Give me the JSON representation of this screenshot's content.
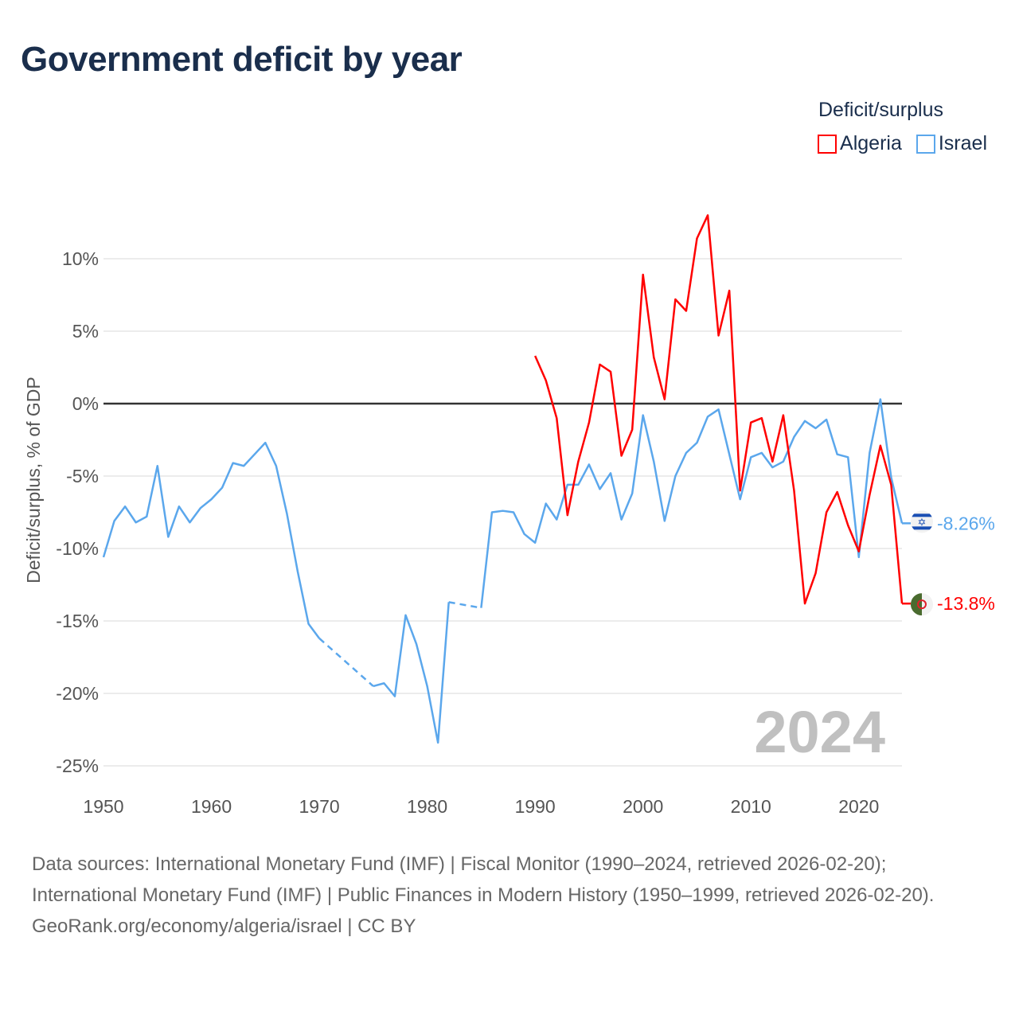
{
  "title": "Government deficit by year",
  "legend": {
    "title": "Deficit/surplus",
    "items": [
      {
        "name": "Algeria",
        "color": "#ff0000"
      },
      {
        "name": "Israel",
        "color": "#5ba7ec"
      }
    ]
  },
  "year_watermark": "2024",
  "footer": {
    "line1": "Data sources: International Monetary Fund (IMF) | Fiscal Monitor (1990–2024, retrieved 2026-02-20); International Monetary Fund (IMF) | Public Finances in Modern History (1950–1999, retrieved 2026-02-20).",
    "line2": "GeoRank.org/economy/algeria/israel | CC BY"
  },
  "chart_data": {
    "type": "line",
    "title": "Government deficit by year",
    "xlabel": "",
    "ylabel": "Deficit/surplus, % of GDP",
    "xlim": [
      1950,
      2024
    ],
    "ylim": [
      -25,
      14
    ],
    "x_ticks": [
      1950,
      1960,
      1970,
      1980,
      1990,
      2000,
      2010,
      2020
    ],
    "y_ticks": [
      10,
      5,
      0,
      -5,
      -10,
      -15,
      -20,
      -25
    ],
    "y_tick_labels": [
      "10%",
      "5%",
      "0%",
      "-5%",
      "-10%",
      "-15%",
      "-20%",
      "-25%"
    ],
    "grid": true,
    "legend_position": "top-right",
    "series": [
      {
        "name": "Israel",
        "color": "#5ba7ec",
        "end_label": "-8.26%",
        "start_year": 1950,
        "values": [
          -10.6,
          -8.1,
          -7.1,
          -8.2,
          -7.8,
          -4.3,
          -9.2,
          -7.1,
          -8.2,
          -7.2,
          -6.6,
          -5.8,
          -4.1,
          -4.3,
          -3.5,
          -2.7,
          -4.3,
          -7.6,
          -11.6,
          -15.2,
          -16.2,
          null,
          null,
          null,
          null,
          -19.5,
          -19.3,
          -20.2,
          -14.6,
          -16.6,
          -19.5,
          -23.4,
          -13.7,
          null,
          null,
          -14.1,
          -7.5,
          -7.4,
          -7.5,
          -9.0,
          -9.6,
          -6.9,
          -8.0,
          -5.6,
          -5.6,
          -4.2,
          -5.9,
          -4.8,
          -8.0,
          -6.2,
          -0.8,
          -4.0,
          -8.1,
          -5.0,
          -3.4,
          -2.7,
          -0.9,
          -0.4,
          -3.5,
          -6.6,
          -3.7,
          -3.4,
          -4.4,
          -4.0,
          -2.3,
          -1.2,
          -1.7,
          -1.1,
          -3.5,
          -3.7,
          -10.6,
          -3.4,
          0.3,
          -5.1,
          -8.26
        ]
      },
      {
        "name": "Algeria",
        "color": "#ff0000",
        "end_label": "-13.8%",
        "start_year": 1990,
        "values": [
          3.3,
          1.6,
          -1.0,
          -7.7,
          -4.0,
          -1.3,
          2.7,
          2.2,
          -3.6,
          -1.8,
          8.9,
          3.2,
          0.3,
          7.2,
          6.4,
          11.4,
          13.0,
          4.7,
          7.8,
          -6.0,
          -1.3,
          -1.0,
          -4.0,
          -0.8,
          -6.0,
          -13.8,
          -11.7,
          -7.5,
          -6.1,
          -8.4,
          -10.2,
          -6.3,
          -2.9,
          -5.6,
          -13.8
        ]
      }
    ]
  }
}
